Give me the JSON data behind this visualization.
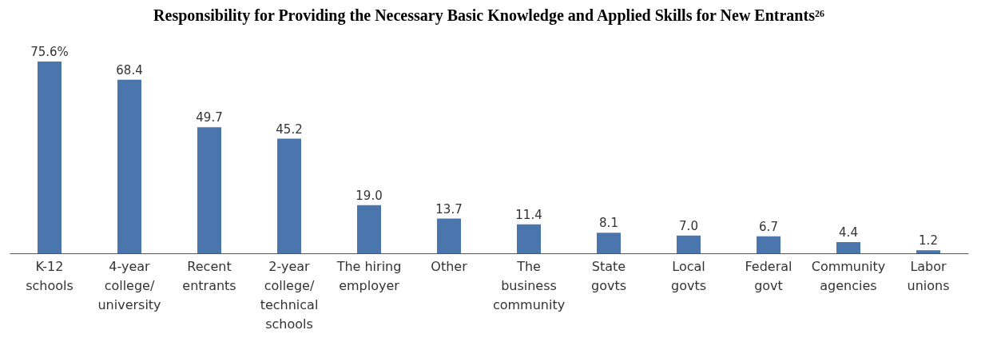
{
  "chart_data": {
    "type": "bar",
    "title": "Responsibility for Providing the Necessary Basic Knowledge and Applied Skills for New Entrants²⁶",
    "categories": [
      "K-12 schools",
      "4-year college/university",
      "Recent entrants",
      "2-year college/technical schools",
      "The hiring employer",
      "Other",
      "The business community",
      "State govts",
      "Local govts",
      "Federal govt",
      "Community agencies",
      "Labor unions"
    ],
    "values": [
      75.6,
      68.4,
      49.7,
      45.2,
      19.0,
      13.7,
      11.4,
      8.1,
      7.0,
      6.7,
      4.4,
      1.2
    ],
    "value_labels": [
      "75.6%",
      "68.4",
      "49.7",
      "45.2",
      "19.0",
      "13.7",
      "11.4",
      "8.1",
      "7.0",
      "6.7",
      "4.4",
      "1.2"
    ],
    "color": "#4a76ad"
  }
}
